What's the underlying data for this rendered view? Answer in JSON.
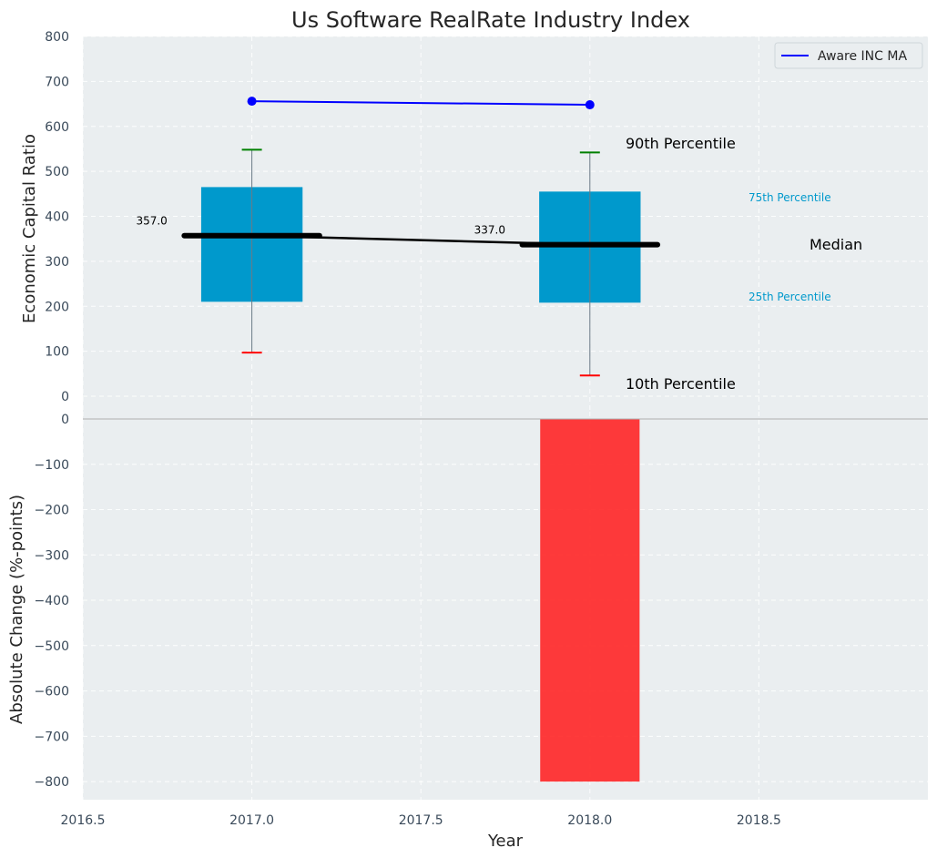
{
  "chart_data": {
    "type": "box",
    "title": "Us Software RealRate Industry Index",
    "xlabel": "Year",
    "top_panel": {
      "ylabel": "Economic Capital Ratio",
      "ylim": [
        0,
        800
      ],
      "yticks": [
        "0",
        "100",
        "200",
        "300",
        "400",
        "500",
        "600",
        "700",
        "800"
      ],
      "boxes": [
        {
          "x": 2017,
          "p10": 97,
          "p25": 210,
          "median": 357,
          "p75": 465,
          "p90": 548,
          "median_label": "357.0"
        },
        {
          "x": 2018,
          "p10": 46,
          "p25": 208,
          "median": 337,
          "p75": 455,
          "p90": 542,
          "median_label": "337.0"
        }
      ],
      "series": [
        {
          "name": "Aware INC MA",
          "x": [
            2017,
            2018
          ],
          "values": [
            656,
            648
          ],
          "color": "#0000ff"
        }
      ],
      "legend_position": "top-right",
      "annotations": {
        "p90": "90th Percentile",
        "p75": "75th Percentile",
        "median": "Median",
        "p25": "25th Percentile",
        "p10": "10th Percentile"
      }
    },
    "bottom_panel": {
      "ylabel": "Absolute Change (%-points)",
      "ylim": [
        -840,
        0
      ],
      "yticks": [
        "0",
        "−100",
        "−200",
        "−300",
        "−400",
        "−500",
        "−600",
        "−700",
        "−800"
      ],
      "bars": [
        {
          "x": 2018,
          "value": -800,
          "color": "#ff2020"
        }
      ]
    },
    "xlim": [
      2016.5,
      2019.0
    ],
    "xticks": [
      "2016.5",
      "2017.0",
      "2017.5",
      "2018.0",
      "2018.5"
    ],
    "grid": true,
    "colors": {
      "box": "#0099cc",
      "median": "#000000",
      "whisker_top": "#008000",
      "whisker_bottom": "#ff0000",
      "panel_bg": "#eaeef0"
    }
  }
}
